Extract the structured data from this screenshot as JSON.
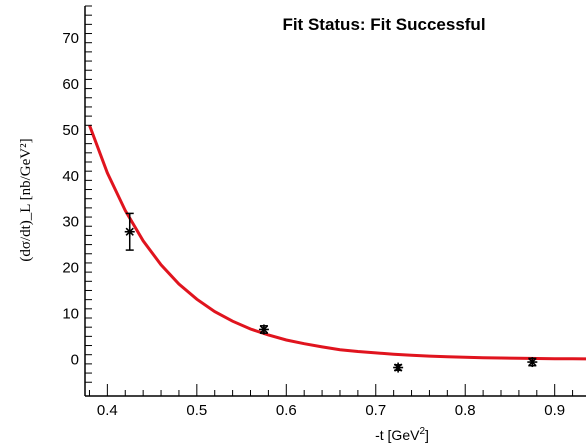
{
  "chart_data": {
    "type": "scatter",
    "title": "Fit Status: Fit Successful",
    "xlabel_base": "-t [GeV",
    "xlabel_sup": "2",
    "xlabel_tail": "]",
    "ylabel": "(dσ/dt)_L [nb/GeV²]",
    "xlim": [
      0.375,
      0.935
    ],
    "ylim": [
      -8,
      77
    ],
    "x_ticks": [
      "0.4",
      "0.5",
      "0.6",
      "0.7",
      "0.8",
      "0.9"
    ],
    "x_tick_values": [
      0.4,
      0.5,
      0.6,
      0.7,
      0.8,
      0.9
    ],
    "y_ticks": [
      "0",
      "10",
      "20",
      "30",
      "40",
      "50",
      "60",
      "70"
    ],
    "y_tick_values": [
      0,
      10,
      20,
      30,
      40,
      50,
      60,
      70
    ],
    "points": [
      {
        "x": 0.425,
        "y": 27.8,
        "err": 4.0
      },
      {
        "x": 0.575,
        "y": 6.5,
        "err": 0.8
      },
      {
        "x": 0.725,
        "y": -1.8,
        "err": 0.6
      },
      {
        "x": 0.875,
        "y": -0.6,
        "err": 0.8
      }
    ],
    "fit": {
      "x": [
        0.38,
        0.4,
        0.42,
        0.44,
        0.46,
        0.48,
        0.5,
        0.52,
        0.54,
        0.56,
        0.58,
        0.6,
        0.62,
        0.64,
        0.66,
        0.68,
        0.7,
        0.72,
        0.74,
        0.76,
        0.78,
        0.8,
        0.82,
        0.84,
        0.86,
        0.88,
        0.9,
        0.92,
        0.935
      ],
      "y": [
        51.0,
        40.6,
        32.4,
        25.8,
        20.6,
        16.4,
        13.1,
        10.4,
        8.3,
        6.6,
        5.3,
        4.2,
        3.4,
        2.7,
        2.1,
        1.7,
        1.4,
        1.1,
        0.87,
        0.69,
        0.55,
        0.44,
        0.35,
        0.28,
        0.22,
        0.18,
        0.14,
        0.11,
        0.09
      ],
      "color": "#e0141e"
    },
    "marker_color": "#000000",
    "grid": false
  }
}
